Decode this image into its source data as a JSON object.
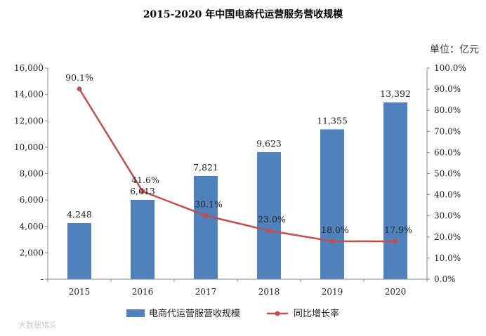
{
  "chart_data": {
    "type": "bar+line",
    "title": "2015-2020 年中国电商代运营服务营收规模",
    "unit_label": "单位：亿元",
    "categories": [
      "2015",
      "2016",
      "2017",
      "2018",
      "2019",
      "2020"
    ],
    "series": [
      {
        "name": "电商代运营服营收规模",
        "type": "bar",
        "axis": "left",
        "color": "#4f81bd",
        "values": [
          4248,
          6013,
          7821,
          9623,
          11355,
          13392
        ],
        "labels": [
          "4,248",
          "6,013",
          "7,821",
          "9,623",
          "11,355",
          "13,392"
        ]
      },
      {
        "name": "同比增长率",
        "type": "line",
        "axis": "right",
        "color": "#c0504d",
        "values": [
          90.1,
          41.6,
          30.1,
          23.0,
          18.0,
          17.9
        ],
        "labels": [
          "90.1%",
          "41.6%",
          "30.1%",
          "23.0%",
          "18.0%",
          "17.9%"
        ]
      }
    ],
    "y_left": {
      "ylim": [
        0,
        16000
      ],
      "ticks": [
        0,
        2000,
        4000,
        6000,
        8000,
        10000,
        12000,
        14000,
        16000
      ],
      "tick_labels": [
        "-",
        "2,000",
        "4,000",
        "6,000",
        "8,000",
        "10,000",
        "12,000",
        "14,000",
        "16,000"
      ]
    },
    "y_right": {
      "ylim": [
        0,
        100
      ],
      "ticks": [
        0,
        10,
        20,
        30,
        40,
        50,
        60,
        70,
        80,
        90,
        100
      ],
      "tick_labels": [
        "0.0%",
        "10.0%",
        "20.0%",
        "30.0%",
        "40.0%",
        "50.0%",
        "60.0%",
        "70.0%",
        "80.0%",
        "90.0%",
        "100.0%"
      ]
    },
    "grid": false,
    "legend_position": "bottom"
  },
  "watermark": "大数据猎头"
}
